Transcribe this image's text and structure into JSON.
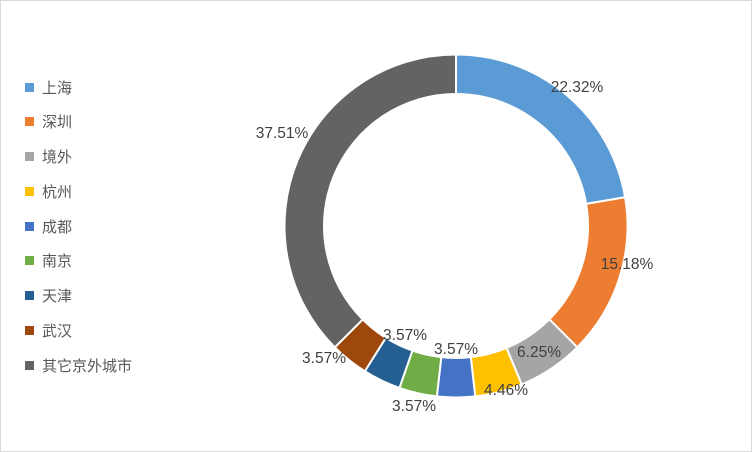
{
  "chart_data": {
    "type": "pie",
    "subtype": "donut",
    "title": "",
    "legend_position": "left",
    "categories": [
      "上海",
      "深圳",
      "境外",
      "杭州",
      "成都",
      "南京",
      "天津",
      "武汉",
      "其它京外城市"
    ],
    "values": [
      22.32,
      15.18,
      6.25,
      4.46,
      3.57,
      3.57,
      3.57,
      3.57,
      37.51
    ],
    "data_labels": [
      "22.32%",
      "15.18%",
      "6.25%",
      "4.46%",
      "3.57%",
      "3.57%",
      "3.57%",
      "3.57%",
      "37.51%"
    ],
    "colors": [
      "#5B9BD5",
      "#ED7D31",
      "#A5A5A5",
      "#FFC000",
      "#4472C4",
      "#70AD47",
      "#255E91",
      "#9E480E",
      "#636363"
    ],
    "start_angle_deg": 0,
    "direction": "clockwise",
    "donut_hole_ratio": 0.77,
    "slice_gap_color": "#FFFFFF",
    "label_color": "#404040",
    "legend_text_color": "#595959",
    "background": "#FFFFFF",
    "border_color": "#D9D9D9"
  }
}
